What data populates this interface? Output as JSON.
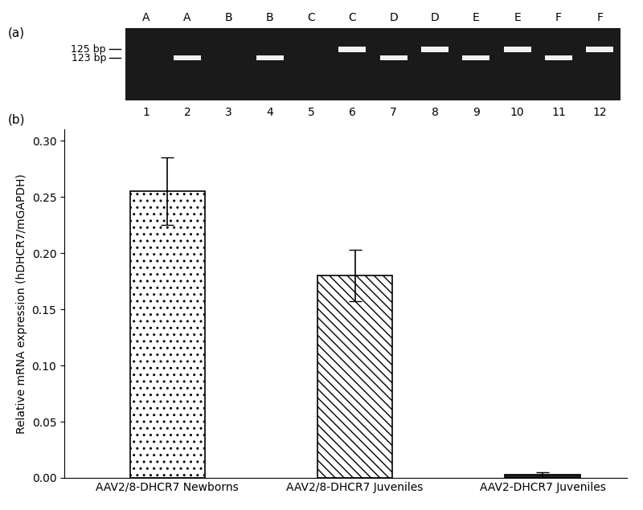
{
  "gel": {
    "label": "(a)",
    "lane_groups": [
      "A",
      "A",
      "B",
      "B",
      "C",
      "C",
      "D",
      "D",
      "E",
      "E",
      "F",
      "F"
    ],
    "lane_numbers": [
      1,
      2,
      3,
      4,
      5,
      6,
      7,
      8,
      9,
      10,
      11,
      12
    ],
    "band_bp": [
      null,
      123,
      null,
      123,
      null,
      125,
      123,
      125,
      123,
      125,
      123,
      125
    ],
    "size_markers": [
      {
        "bp": 125,
        "label": "125 bp"
      },
      {
        "bp": 123,
        "label": "123 bp"
      }
    ]
  },
  "chart_data": {
    "type": "bar",
    "title": "(b)",
    "y_label": "Relative mRNA expression (hDHCR7/mGAPDH)",
    "categories": [
      "AAV2/8-DHCR7 Newborns",
      "AAV2/8-DHCR7 Juveniles",
      "AAV2-DHCR7 Juveniles"
    ],
    "values": [
      0.255,
      0.18,
      0.003
    ],
    "errors": [
      0.03,
      0.023,
      0.002
    ],
    "colors": [
      "#ffffff",
      "#ffffff",
      "#222222"
    ],
    "ylim": [
      0,
      0.31
    ],
    "yticks": [
      {
        "value": 0,
        "label": "0.00"
      },
      {
        "value": 0.05,
        "label": "0.05"
      },
      {
        "value": 0.1,
        "label": "0.10"
      },
      {
        "value": 0.15,
        "label": "0.15"
      },
      {
        "value": 0.2,
        "label": "0.20"
      },
      {
        "value": 0.25,
        "label": "0.25"
      },
      {
        "value": 0.3,
        "label": "0.30"
      }
    ],
    "grid": false
  }
}
